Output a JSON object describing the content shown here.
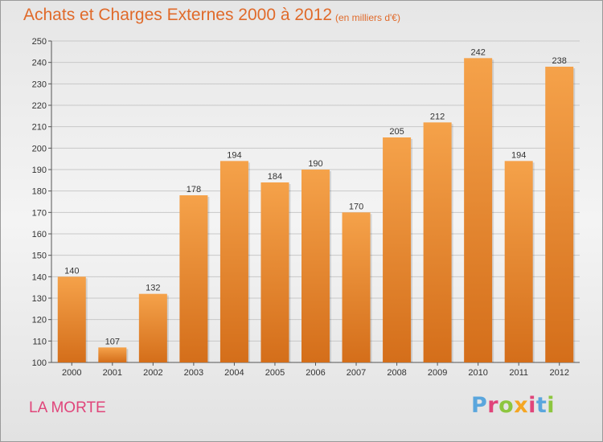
{
  "chart_data": {
    "type": "bar",
    "title": "Achats et Charges Externes 2000 à 2012",
    "subtitle": "(en milliers d'€)",
    "categories": [
      "2000",
      "2001",
      "2002",
      "2003",
      "2004",
      "2005",
      "2006",
      "2007",
      "2008",
      "2009",
      "2010",
      "2011",
      "2012"
    ],
    "values": [
      140,
      107,
      132,
      178,
      194,
      184,
      190,
      170,
      205,
      212,
      242,
      194,
      238
    ],
    "ylim": [
      100,
      250
    ],
    "yticks": [
      100,
      110,
      120,
      130,
      140,
      150,
      160,
      170,
      180,
      190,
      200,
      210,
      220,
      230,
      240,
      250
    ],
    "grid": true,
    "bar_color_top": "#f5a24a",
    "bar_color_bottom": "#d46e1a"
  },
  "footer": {
    "commune": "LA MORTE",
    "logo": {
      "letters": [
        "P",
        "r",
        "o",
        "x",
        "i",
        "t",
        "i"
      ],
      "colors": [
        "#5aa6dd",
        "#e0457a",
        "#8dc63f",
        "#f5a623",
        "#e0457a",
        "#5aa6dd",
        "#8dc63f"
      ]
    }
  }
}
